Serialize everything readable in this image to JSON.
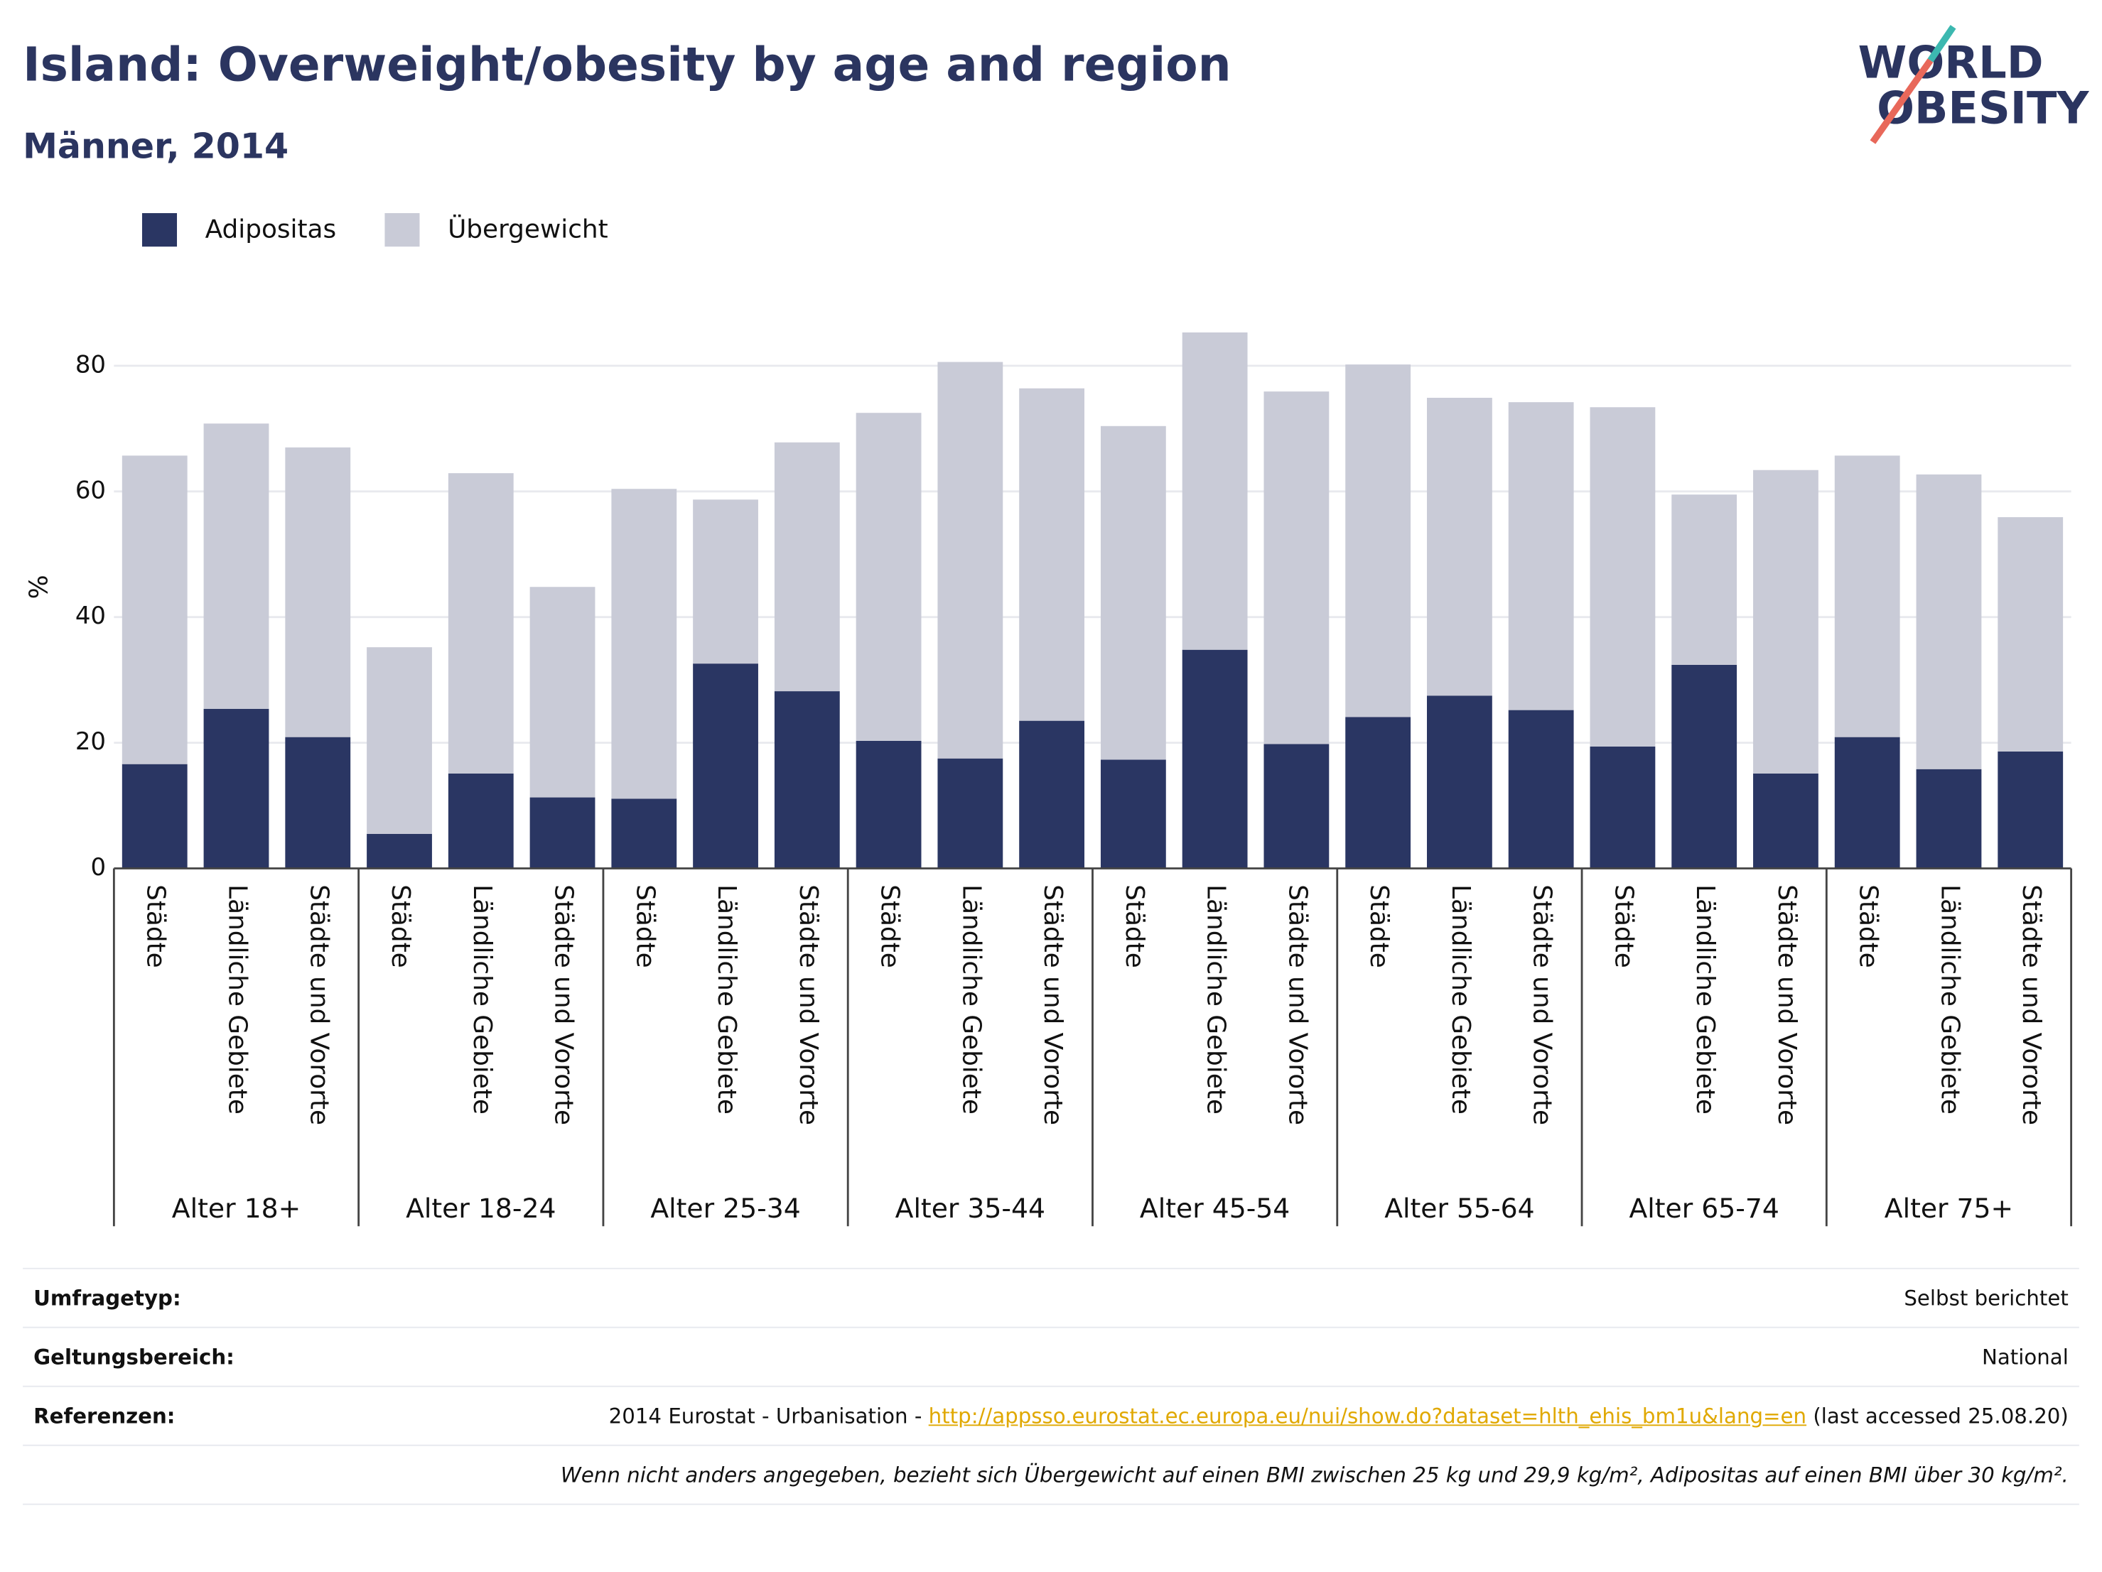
{
  "chart_data": {
    "type": "stacked_bar",
    "title": "Island: Overweight/obesity by age and region",
    "subtitle": "Männer, 2014",
    "y_label": "%",
    "categories": [
      "Städte",
      "Ländliche Gebiete",
      "Städte und Vororte",
      "Städte",
      "Ländliche Gebiete",
      "Städte und Vororte",
      "Städte",
      "Ländliche Gebiete",
      "Städte und Vororte",
      "Städte",
      "Ländliche Gebiete",
      "Städte und Vororte",
      "Städte",
      "Ländliche Gebiete",
      "Städte und Vororte",
      "Städte",
      "Ländliche Gebiete",
      "Städte und Vororte",
      "Städte",
      "Ländliche Gebiete",
      "Städte und Vororte",
      "Städte",
      "Ländliche Gebiete",
      "Städte und Vororte"
    ],
    "groups": [
      "Alter 18+",
      "Alter 18-24",
      "Alter 25-34",
      "Alter 35-44",
      "Alter 45-54",
      "Alter 55-64",
      "Alter 65-74",
      "Alter 75+"
    ],
    "series": [
      {
        "name": "Adipositas",
        "color": "#2a3663",
        "values": [
          16.6,
          25.4,
          20.9,
          5.5,
          15.1,
          11.3,
          11.1,
          32.6,
          28.2,
          20.3,
          17.5,
          23.5,
          17.3,
          34.8,
          19.8,
          24.1,
          27.5,
          25.2,
          19.4,
          32.4,
          15.1,
          20.9,
          15.8,
          18.6
        ]
      },
      {
        "name": "Übergewicht",
        "color": "#c9cbd7",
        "values": [
          49.1,
          45.4,
          46.1,
          29.7,
          47.8,
          33.5,
          49.3,
          26.1,
          39.6,
          52.2,
          63.1,
          52.9,
          53.1,
          50.5,
          56.1,
          56.1,
          47.4,
          49.0,
          54.0,
          27.1,
          48.3,
          44.8,
          46.9,
          37.3
        ]
      }
    ],
    "ylim": [
      0,
      90
    ],
    "yticks": [
      0,
      20,
      40,
      60,
      80
    ],
    "grid": true
  },
  "logo": {
    "line1": "WORLD",
    "line2": "OBESITY"
  },
  "footer": {
    "rows": [
      {
        "label": "Umfragetyp:",
        "value": "Selbst berichtet"
      },
      {
        "label": "Geltungsbereich:",
        "value": "National"
      },
      {
        "label": "Referenzen:",
        "value_prefix": "2014 Eurostat - Urbanisation - ",
        "link": "http://appsso.eurostat.ec.europa.eu/nui/show.do?dataset=hlth_ehis_bm1u&lang=en",
        "value_suffix": " (last accessed 25.08.20)"
      }
    ],
    "note": "Wenn nicht anders angegeben, bezieht sich Übergewicht auf einen BMI zwischen 25 kg und 29,9 kg/m², Adipositas auf einen BMI über 30 kg/m²."
  }
}
